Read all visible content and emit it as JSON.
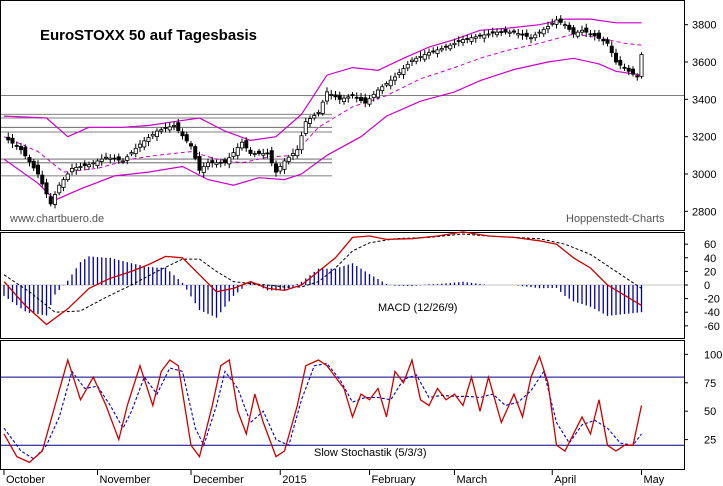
{
  "title": "EuroSTOXX 50 auf Tagesbasis",
  "watermark_left": "www.chartbuero.de",
  "watermark_right": "Hoppenstedt-Charts",
  "colors": {
    "candle": "#000000",
    "bollinger": "#cc00cc",
    "macd_line": "#cc0000",
    "signal_line": "#000000",
    "histogram": "#0000aa",
    "stoch_k": "#cc0000",
    "stoch_d": "#0000cc",
    "levels": "#000080",
    "frame": "#000000"
  },
  "x_axis": {
    "labels": [
      "October",
      "November",
      "December",
      "2015",
      "February",
      "March",
      "April",
      "May"
    ],
    "label_index": [
      0,
      22,
      44,
      65,
      86,
      106,
      129,
      150
    ]
  },
  "chart_data": [
    {
      "type": "candlestick",
      "name": "price",
      "title": "EuroSTOXX 50 auf Tagesbasis",
      "ylim": [
        2700,
        3900
      ],
      "yticks": [
        2800,
        3000,
        3200,
        3400,
        3600,
        3800
      ],
      "support_lines": [
        2990,
        3060,
        3080,
        3225,
        3250,
        3300,
        3320
      ],
      "keyframes_close": [
        [
          0,
          3200
        ],
        [
          4,
          3130
        ],
        [
          8,
          3000
        ],
        [
          11,
          2840
        ],
        [
          13,
          2940
        ],
        [
          16,
          3030
        ],
        [
          20,
          3050
        ],
        [
          24,
          3090
        ],
        [
          28,
          3070
        ],
        [
          32,
          3160
        ],
        [
          36,
          3230
        ],
        [
          40,
          3260
        ],
        [
          44,
          3150
        ],
        [
          46,
          3020
        ],
        [
          48,
          3060
        ],
        [
          52,
          3060
        ],
        [
          56,
          3170
        ],
        [
          58,
          3110
        ],
        [
          62,
          3110
        ],
        [
          64,
          3010
        ],
        [
          66,
          3070
        ],
        [
          69,
          3130
        ],
        [
          71,
          3280
        ],
        [
          74,
          3330
        ],
        [
          76,
          3440
        ],
        [
          79,
          3400
        ],
        [
          82,
          3420
        ],
        [
          85,
          3380
        ],
        [
          88,
          3450
        ],
        [
          92,
          3520
        ],
        [
          96,
          3610
        ],
        [
          100,
          3650
        ],
        [
          104,
          3680
        ],
        [
          108,
          3720
        ],
        [
          112,
          3740
        ],
        [
          116,
          3760
        ],
        [
          120,
          3760
        ],
        [
          124,
          3730
        ],
        [
          128,
          3790
        ],
        [
          130,
          3825
        ],
        [
          132,
          3800
        ],
        [
          134,
          3750
        ],
        [
          136,
          3770
        ],
        [
          139,
          3740
        ],
        [
          142,
          3700
        ],
        [
          144,
          3600
        ],
        [
          147,
          3550
        ],
        [
          149,
          3520
        ],
        [
          150,
          3640
        ]
      ],
      "bollinger_upper": [
        [
          0,
          3310
        ],
        [
          10,
          3300
        ],
        [
          15,
          3200
        ],
        [
          20,
          3250
        ],
        [
          28,
          3250
        ],
        [
          34,
          3260
        ],
        [
          40,
          3280
        ],
        [
          46,
          3300
        ],
        [
          52,
          3230
        ],
        [
          58,
          3180
        ],
        [
          64,
          3200
        ],
        [
          70,
          3320
        ],
        [
          76,
          3530
        ],
        [
          82,
          3570
        ],
        [
          88,
          3555
        ],
        [
          94,
          3620
        ],
        [
          100,
          3680
        ],
        [
          106,
          3720
        ],
        [
          112,
          3770
        ],
        [
          118,
          3780
        ],
        [
          126,
          3800
        ],
        [
          132,
          3830
        ],
        [
          138,
          3830
        ],
        [
          144,
          3810
        ],
        [
          150,
          3810
        ]
      ],
      "bollinger_middle": [
        [
          0,
          3200
        ],
        [
          8,
          3120
        ],
        [
          14,
          3010
        ],
        [
          22,
          3030
        ],
        [
          30,
          3080
        ],
        [
          36,
          3100
        ],
        [
          44,
          3120
        ],
        [
          50,
          3080
        ],
        [
          56,
          3060
        ],
        [
          62,
          3090
        ],
        [
          68,
          3100
        ],
        [
          74,
          3250
        ],
        [
          82,
          3360
        ],
        [
          90,
          3420
        ],
        [
          98,
          3510
        ],
        [
          106,
          3570
        ],
        [
          112,
          3620
        ],
        [
          118,
          3660
        ],
        [
          126,
          3700
        ],
        [
          134,
          3750
        ],
        [
          140,
          3730
        ],
        [
          146,
          3700
        ],
        [
          150,
          3690
        ]
      ],
      "bollinger_lower": [
        [
          0,
          3080
        ],
        [
          8,
          2950
        ],
        [
          12,
          2860
        ],
        [
          18,
          2920
        ],
        [
          26,
          2990
        ],
        [
          34,
          3010
        ],
        [
          42,
          3040
        ],
        [
          48,
          2970
        ],
        [
          54,
          2940
        ],
        [
          60,
          2980
        ],
        [
          66,
          2970
        ],
        [
          70,
          3000
        ],
        [
          76,
          3100
        ],
        [
          84,
          3200
        ],
        [
          90,
          3310
        ],
        [
          98,
          3390
        ],
        [
          106,
          3440
        ],
        [
          112,
          3500
        ],
        [
          120,
          3560
        ],
        [
          128,
          3600
        ],
        [
          134,
          3620
        ],
        [
          140,
          3590
        ],
        [
          144,
          3550
        ],
        [
          150,
          3530
        ]
      ]
    },
    {
      "type": "line",
      "name": "MACD (12/26/9)",
      "ylim": [
        -72,
        72
      ],
      "yticks": [
        60,
        40,
        20,
        0,
        -20,
        -40,
        -60
      ],
      "macd": [
        [
          0,
          5
        ],
        [
          5,
          -30
        ],
        [
          10,
          -58
        ],
        [
          15,
          -35
        ],
        [
          20,
          -5
        ],
        [
          25,
          10
        ],
        [
          30,
          20
        ],
        [
          34,
          30
        ],
        [
          38,
          42
        ],
        [
          42,
          40
        ],
        [
          46,
          15
        ],
        [
          50,
          -10
        ],
        [
          54,
          -5
        ],
        [
          58,
          5
        ],
        [
          62,
          -5
        ],
        [
          66,
          -8
        ],
        [
          70,
          0
        ],
        [
          74,
          20
        ],
        [
          78,
          40
        ],
        [
          82,
          70
        ],
        [
          86,
          72
        ],
        [
          90,
          67
        ],
        [
          96,
          68
        ],
        [
          102,
          72
        ],
        [
          108,
          78
        ],
        [
          114,
          72
        ],
        [
          120,
          70
        ],
        [
          126,
          65
        ],
        [
          130,
          60
        ],
        [
          134,
          40
        ],
        [
          138,
          25
        ],
        [
          142,
          0
        ],
        [
          146,
          -15
        ],
        [
          150,
          -30
        ]
      ],
      "signal": [
        [
          0,
          15
        ],
        [
          6,
          -10
        ],
        [
          12,
          -40
        ],
        [
          18,
          -38
        ],
        [
          24,
          -18
        ],
        [
          30,
          0
        ],
        [
          36,
          20
        ],
        [
          42,
          38
        ],
        [
          46,
          38
        ],
        [
          50,
          20
        ],
        [
          54,
          5
        ],
        [
          58,
          2
        ],
        [
          62,
          0
        ],
        [
          66,
          -3
        ],
        [
          70,
          -3
        ],
        [
          74,
          5
        ],
        [
          78,
          25
        ],
        [
          82,
          50
        ],
        [
          86,
          62
        ],
        [
          92,
          68
        ],
        [
          100,
          70
        ],
        [
          108,
          75
        ],
        [
          114,
          72
        ],
        [
          120,
          70
        ],
        [
          126,
          68
        ],
        [
          132,
          60
        ],
        [
          138,
          45
        ],
        [
          144,
          20
        ],
        [
          150,
          -5
        ]
      ]
    },
    {
      "type": "line",
      "name": "Slow Stochastik (5/3/3)",
      "ylim": [
        0,
        110
      ],
      "yticks": [
        100,
        75,
        50,
        25
      ],
      "levels": [
        80,
        20
      ],
      "k": [
        [
          0,
          30
        ],
        [
          3,
          10
        ],
        [
          6,
          5
        ],
        [
          9,
          15
        ],
        [
          12,
          55
        ],
        [
          15,
          95
        ],
        [
          18,
          60
        ],
        [
          21,
          80
        ],
        [
          24,
          55
        ],
        [
          27,
          25
        ],
        [
          29,
          55
        ],
        [
          32,
          90
        ],
        [
          35,
          55
        ],
        [
          37,
          85
        ],
        [
          39,
          95
        ],
        [
          41,
          90
        ],
        [
          44,
          20
        ],
        [
          46,
          10
        ],
        [
          49,
          55
        ],
        [
          51,
          90
        ],
        [
          53,
          95
        ],
        [
          55,
          50
        ],
        [
          57,
          30
        ],
        [
          59,
          65
        ],
        [
          61,
          40
        ],
        [
          64,
          10
        ],
        [
          66,
          15
        ],
        [
          69,
          55
        ],
        [
          71,
          90
        ],
        [
          74,
          95
        ],
        [
          76,
          90
        ],
        [
          78,
          80
        ],
        [
          80,
          70
        ],
        [
          82,
          45
        ],
        [
          84,
          65
        ],
        [
          86,
          60
        ],
        [
          88,
          70
        ],
        [
          90,
          45
        ],
        [
          92,
          85
        ],
        [
          94,
          75
        ],
        [
          96,
          95
        ],
        [
          98,
          60
        ],
        [
          100,
          55
        ],
        [
          102,
          70
        ],
        [
          104,
          60
        ],
        [
          106,
          65
        ],
        [
          108,
          55
        ],
        [
          110,
          80
        ],
        [
          112,
          50
        ],
        [
          114,
          80
        ],
        [
          117,
          40
        ],
        [
          120,
          65
        ],
        [
          122,
          45
        ],
        [
          124,
          80
        ],
        [
          126,
          98
        ],
        [
          128,
          75
        ],
        [
          130,
          20
        ],
        [
          132,
          15
        ],
        [
          134,
          30
        ],
        [
          136,
          45
        ],
        [
          138,
          30
        ],
        [
          140,
          60
        ],
        [
          142,
          20
        ],
        [
          144,
          15
        ],
        [
          146,
          20
        ],
        [
          148,
          20
        ],
        [
          150,
          55
        ]
      ],
      "d": [
        [
          0,
          35
        ],
        [
          4,
          15
        ],
        [
          7,
          8
        ],
        [
          10,
          20
        ],
        [
          13,
          45
        ],
        [
          16,
          85
        ],
        [
          19,
          70
        ],
        [
          22,
          72
        ],
        [
          25,
          55
        ],
        [
          28,
          35
        ],
        [
          30,
          50
        ],
        [
          33,
          80
        ],
        [
          36,
          65
        ],
        [
          39,
          88
        ],
        [
          42,
          85
        ],
        [
          45,
          35
        ],
        [
          47,
          20
        ],
        [
          50,
          55
        ],
        [
          52,
          85
        ],
        [
          55,
          70
        ],
        [
          58,
          40
        ],
        [
          61,
          50
        ],
        [
          64,
          25
        ],
        [
          67,
          20
        ],
        [
          70,
          60
        ],
        [
          73,
          90
        ],
        [
          76,
          92
        ],
        [
          79,
          78
        ],
        [
          82,
          58
        ],
        [
          85,
          62
        ],
        [
          88,
          62
        ],
        [
          91,
          60
        ],
        [
          94,
          78
        ],
        [
          97,
          82
        ],
        [
          100,
          62
        ],
        [
          103,
          64
        ],
        [
          106,
          63
        ],
        [
          109,
          63
        ],
        [
          112,
          62
        ],
        [
          115,
          65
        ],
        [
          118,
          55
        ],
        [
          121,
          58
        ],
        [
          124,
          68
        ],
        [
          127,
          85
        ],
        [
          130,
          40
        ],
        [
          133,
          22
        ],
        [
          136,
          38
        ],
        [
          139,
          42
        ],
        [
          142,
          35
        ],
        [
          145,
          22
        ],
        [
          148,
          20
        ],
        [
          150,
          30
        ]
      ]
    }
  ]
}
